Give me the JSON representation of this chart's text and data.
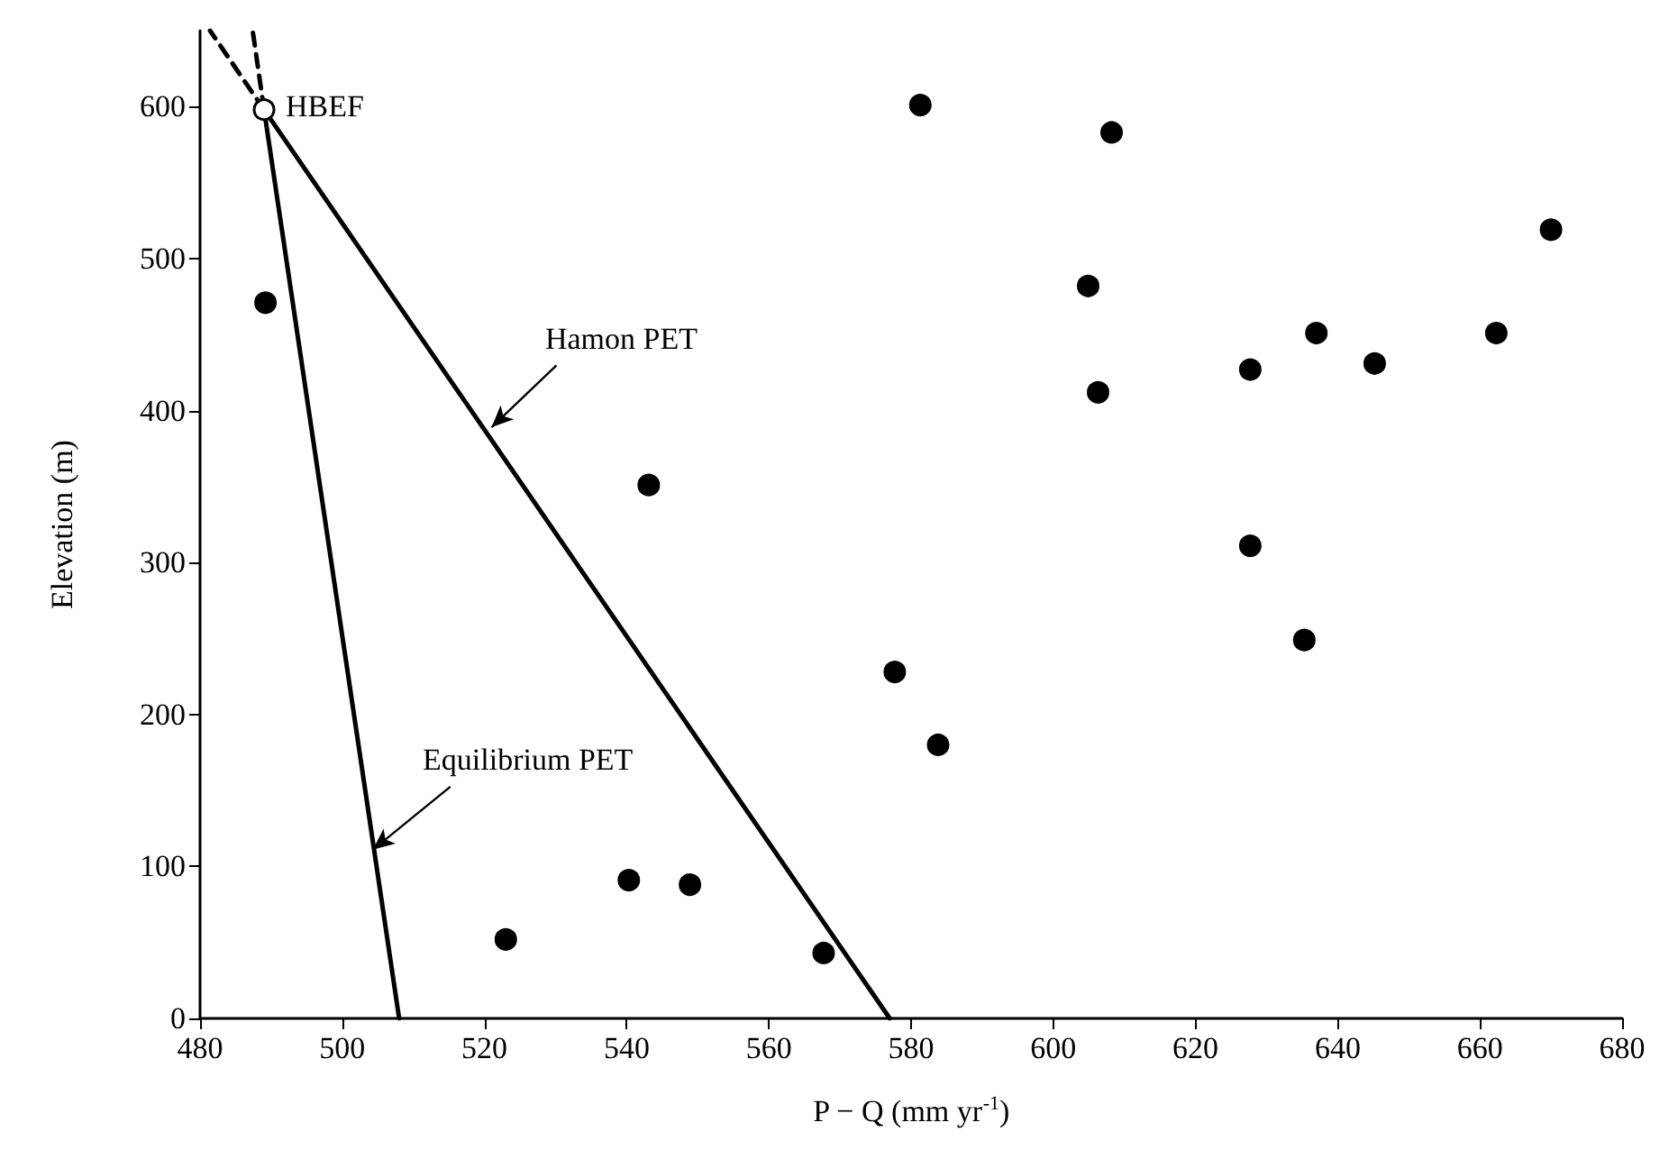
{
  "chart_data": {
    "type": "scatter",
    "xlabel": "P − Q (mm yr$^{-1}$)",
    "ylabel": "Elevation (m)",
    "xlim": [
      480,
      680
    ],
    "xticks": [
      480,
      500,
      520,
      540,
      560,
      580,
      600,
      620,
      640,
      660,
      680
    ],
    "ylim": [
      0,
      650
    ],
    "yticks": [
      0,
      100,
      200,
      300,
      400,
      500,
      600
    ],
    "marker": "circle",
    "series": [
      {
        "type": "scatter",
        "color": "#000000",
        "x": [
          489.2,
          543.1,
          581.3,
          523,
          540.3,
          548.9,
          567.7,
          577.7,
          583.8,
          635.3,
          627.7,
          608.2,
          604.9,
          606.3,
          627.7,
          637,
          645.2,
          662.3,
          670
        ],
        "values": [
          471,
          351,
          601,
          52,
          91,
          88,
          43,
          228,
          180,
          249,
          311,
          583,
          482,
          412,
          427,
          451,
          431,
          451,
          519
        ]
      },
      {
        "type": "scatter",
        "color": "#ffffff",
        "x": [
          489
        ],
        "values": [
          598
        ]
      },
      {
        "type": "line",
        "color": "#000000",
        "marker": "none",
        "line_style": "solid",
        "x": [
          489,
          577
        ],
        "values": [
          598,
          0
        ]
      },
      {
        "type": "line",
        "color": "#000000",
        "marker": "none",
        "line_style": "solid",
        "x": [
          489,
          508
        ],
        "values": [
          598,
          0
        ]
      },
      {
        "type": "line",
        "color": "#000000",
        "marker": "none",
        "line_style": "dashed",
        "x": [
          489,
          481.4
        ],
        "values": [
          598,
          650
        ]
      },
      {
        "type": "line",
        "color": "#000000",
        "marker": "none",
        "line_style": "dashed",
        "x": [
          489,
          487.4
        ],
        "values": [
          598,
          650
        ]
      }
    ],
    "annotations": [
      {
        "text": "HBEF",
        "x": 489,
        "y": 598
      },
      {
        "text": "Hamon PET",
        "x": 521,
        "y": 389
      },
      {
        "text": "Equilibrium PET",
        "x": 504.3,
        "y": 111
      }
    ]
  }
}
